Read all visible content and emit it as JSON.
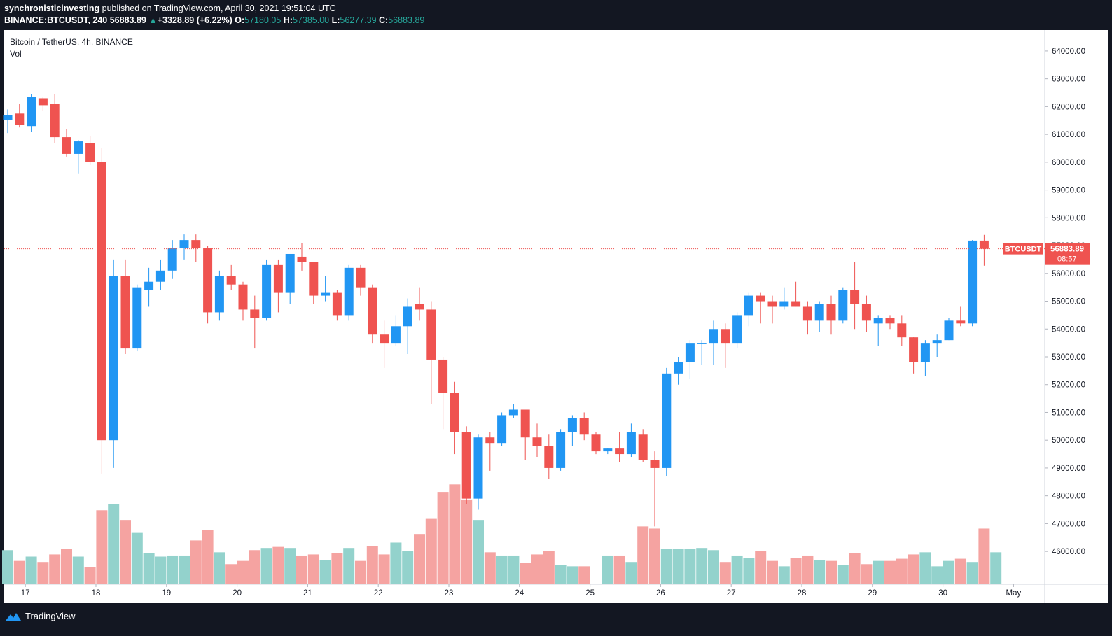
{
  "header": {
    "author": "synchronisticinvesting",
    "published_text": " published on TradingView.com, April 30, 2021 19:51:04 UTC",
    "symbol": "BINANCE:BTCUSDT, 240",
    "last_price": "56883.89",
    "change": "+3328.89 (+6.22%)",
    "o_label": "O:",
    "o_value": "57180.05",
    "h_label": "H:",
    "h_value": "57385.00",
    "l_label": "L:",
    "l_value": "56277.39",
    "c_label": "C:",
    "c_value": "56883.89"
  },
  "legend": {
    "title": "Bitcoin / TetherUS, 4h, BINANCE",
    "volume_label": "Vol"
  },
  "price_tag": {
    "symbol": "BTCUSDT",
    "price": "56883.89",
    "countdown": "08:57"
  },
  "footer": {
    "brand": "TradingView"
  },
  "colors": {
    "up": "#2196f3",
    "down": "#ef5350",
    "vol_up": "#93d2cc",
    "vol_down": "#f5a3a1",
    "tag_bg": "#ef5350",
    "background": "#ffffff",
    "frame": "#131722"
  },
  "chart_data": {
    "type": "candlestick",
    "interval": "4h",
    "y_axis": {
      "min": 45500,
      "max": 64300,
      "ticks": [
        "64000.00",
        "63000.00",
        "62000.00",
        "61000.00",
        "60000.00",
        "59000.00",
        "58000.00",
        "57000.00",
        "56000.00",
        "55000.00",
        "54000.00",
        "53000.00",
        "52000.00",
        "51000.00",
        "50000.00",
        "49000.00",
        "48000.00",
        "47000.00",
        "46000.00"
      ],
      "tick_values": [
        64000,
        63000,
        62000,
        61000,
        60000,
        59000,
        58000,
        57000,
        56000,
        55000,
        54000,
        53000,
        52000,
        51000,
        50000,
        49000,
        48000,
        47000,
        46000
      ]
    },
    "x_axis": {
      "labels": [
        "17",
        "18",
        "19",
        "20",
        "21",
        "22",
        "23",
        "24",
        "25",
        "26",
        "27",
        "28",
        "29",
        "30",
        "May"
      ],
      "label_bar_index": [
        1.5,
        7.5,
        13.5,
        19.5,
        25.5,
        31.5,
        37.5,
        43.5,
        49.5,
        55.5,
        61.5,
        67.5,
        73.5,
        79.5,
        85.5
      ]
    },
    "last_price_line": 56883.89,
    "volume_scale_max": 100,
    "candles": [
      {
        "o": 61520,
        "h": 61900,
        "l": 61050,
        "c": 61700
      },
      {
        "o": 61750,
        "h": 62100,
        "l": 61250,
        "c": 61350
      },
      {
        "o": 61300,
        "h": 62450,
        "l": 61100,
        "c": 62350
      },
      {
        "o": 62300,
        "h": 62350,
        "l": 61850,
        "c": 62050
      },
      {
        "o": 62100,
        "h": 62450,
        "l": 60700,
        "c": 60900
      },
      {
        "o": 60900,
        "h": 61200,
        "l": 60200,
        "c": 60300
      },
      {
        "o": 60300,
        "h": 60800,
        "l": 59600,
        "c": 60750
      },
      {
        "o": 60700,
        "h": 60950,
        "l": 59900,
        "c": 60000
      },
      {
        "o": 60000,
        "h": 60500,
        "l": 48800,
        "c": 50000
      },
      {
        "o": 50000,
        "h": 56500,
        "l": 49000,
        "c": 55900
      },
      {
        "o": 55900,
        "h": 56500,
        "l": 53100,
        "c": 53300
      },
      {
        "o": 53300,
        "h": 55600,
        "l": 53200,
        "c": 55500
      },
      {
        "o": 55400,
        "h": 56200,
        "l": 54800,
        "c": 55700
      },
      {
        "o": 55700,
        "h": 56500,
        "l": 55400,
        "c": 56100
      },
      {
        "o": 56100,
        "h": 57200,
        "l": 55800,
        "c": 56900
      },
      {
        "o": 56900,
        "h": 57400,
        "l": 56500,
        "c": 57200
      },
      {
        "o": 57200,
        "h": 57400,
        "l": 56400,
        "c": 56900
      },
      {
        "o": 56900,
        "h": 57000,
        "l": 54200,
        "c": 54600
      },
      {
        "o": 54600,
        "h": 56100,
        "l": 54300,
        "c": 55900
      },
      {
        "o": 55900,
        "h": 56300,
        "l": 55400,
        "c": 55600
      },
      {
        "o": 55600,
        "h": 55700,
        "l": 54300,
        "c": 54700
      },
      {
        "o": 54700,
        "h": 55200,
        "l": 53300,
        "c": 54400
      },
      {
        "o": 54400,
        "h": 56500,
        "l": 54300,
        "c": 56300
      },
      {
        "o": 56300,
        "h": 56500,
        "l": 54600,
        "c": 55300
      },
      {
        "o": 55300,
        "h": 56700,
        "l": 54900,
        "c": 56700
      },
      {
        "o": 56600,
        "h": 57100,
        "l": 56100,
        "c": 56400
      },
      {
        "o": 56400,
        "h": 56400,
        "l": 54900,
        "c": 55200
      },
      {
        "o": 55200,
        "h": 55900,
        "l": 55000,
        "c": 55300
      },
      {
        "o": 55300,
        "h": 55400,
        "l": 54300,
        "c": 54500
      },
      {
        "o": 54500,
        "h": 56300,
        "l": 54300,
        "c": 56200
      },
      {
        "o": 56200,
        "h": 56300,
        "l": 55200,
        "c": 55500
      },
      {
        "o": 55500,
        "h": 55600,
        "l": 53500,
        "c": 53800
      },
      {
        "o": 53800,
        "h": 54300,
        "l": 52600,
        "c": 53500
      },
      {
        "o": 53500,
        "h": 54500,
        "l": 53400,
        "c": 54100
      },
      {
        "o": 54100,
        "h": 55100,
        "l": 53100,
        "c": 54800
      },
      {
        "o": 54900,
        "h": 55500,
        "l": 54300,
        "c": 54700
      },
      {
        "o": 54700,
        "h": 55000,
        "l": 51300,
        "c": 52900
      },
      {
        "o": 52900,
        "h": 53000,
        "l": 50400,
        "c": 51700
      },
      {
        "o": 51700,
        "h": 52100,
        "l": 49500,
        "c": 50300
      },
      {
        "o": 50300,
        "h": 50500,
        "l": 47700,
        "c": 47900
      },
      {
        "o": 47900,
        "h": 50200,
        "l": 47500,
        "c": 50100
      },
      {
        "o": 50100,
        "h": 50300,
        "l": 48900,
        "c": 49900
      },
      {
        "o": 49900,
        "h": 51000,
        "l": 49800,
        "c": 50900
      },
      {
        "o": 50900,
        "h": 51300,
        "l": 50800,
        "c": 51100
      },
      {
        "o": 51100,
        "h": 51100,
        "l": 49300,
        "c": 50100
      },
      {
        "o": 50100,
        "h": 50600,
        "l": 49400,
        "c": 49800
      },
      {
        "o": 49800,
        "h": 50200,
        "l": 48600,
        "c": 49000
      },
      {
        "o": 49000,
        "h": 50400,
        "l": 48900,
        "c": 50300
      },
      {
        "o": 50300,
        "h": 50900,
        "l": 49800,
        "c": 50800
      },
      {
        "o": 50800,
        "h": 51000,
        "l": 50000,
        "c": 50200
      },
      {
        "o": 50200,
        "h": 50300,
        "l": 49500,
        "c": 49600
      },
      {
        "o": 49600,
        "h": 49700,
        "l": 49500,
        "c": 49700
      },
      {
        "o": 49700,
        "h": 50300,
        "l": 49200,
        "c": 49500
      },
      {
        "o": 49500,
        "h": 50600,
        "l": 49400,
        "c": 50300
      },
      {
        "o": 50200,
        "h": 50400,
        "l": 49200,
        "c": 49300
      },
      {
        "o": 49300,
        "h": 49600,
        "l": 46900,
        "c": 49000
      },
      {
        "o": 49000,
        "h": 52600,
        "l": 48700,
        "c": 52400
      },
      {
        "o": 52400,
        "h": 53000,
        "l": 52000,
        "c": 52800
      },
      {
        "o": 52800,
        "h": 53600,
        "l": 52200,
        "c": 53500
      },
      {
        "o": 53500,
        "h": 53600,
        "l": 52700,
        "c": 53500
      },
      {
        "o": 53500,
        "h": 54300,
        "l": 52700,
        "c": 54000
      },
      {
        "o": 54000,
        "h": 54200,
        "l": 52600,
        "c": 53500
      },
      {
        "o": 53500,
        "h": 54600,
        "l": 53300,
        "c": 54500
      },
      {
        "o": 54500,
        "h": 55300,
        "l": 54100,
        "c": 55200
      },
      {
        "o": 55200,
        "h": 55300,
        "l": 54200,
        "c": 55000
      },
      {
        "o": 55000,
        "h": 55200,
        "l": 54200,
        "c": 54800
      },
      {
        "o": 54800,
        "h": 55500,
        "l": 54700,
        "c": 55000
      },
      {
        "o": 55000,
        "h": 55700,
        "l": 54800,
        "c": 54800
      },
      {
        "o": 54800,
        "h": 55000,
        "l": 53800,
        "c": 54300
      },
      {
        "o": 54300,
        "h": 55000,
        "l": 53900,
        "c": 54900
      },
      {
        "o": 54900,
        "h": 55200,
        "l": 53800,
        "c": 54300
      },
      {
        "o": 54300,
        "h": 55500,
        "l": 54200,
        "c": 55400
      },
      {
        "o": 55400,
        "h": 56400,
        "l": 54000,
        "c": 54900
      },
      {
        "o": 54900,
        "h": 55200,
        "l": 53900,
        "c": 54300
      },
      {
        "o": 54200,
        "h": 54500,
        "l": 53400,
        "c": 54400
      },
      {
        "o": 54400,
        "h": 54500,
        "l": 54000,
        "c": 54200
      },
      {
        "o": 54200,
        "h": 54500,
        "l": 53400,
        "c": 53700
      },
      {
        "o": 53700,
        "h": 53700,
        "l": 52400,
        "c": 52800
      },
      {
        "o": 52800,
        "h": 53600,
        "l": 52300,
        "c": 53500
      },
      {
        "o": 53500,
        "h": 53800,
        "l": 53000,
        "c": 53600
      },
      {
        "o": 53600,
        "h": 54400,
        "l": 53600,
        "c": 54300
      },
      {
        "o": 54300,
        "h": 54800,
        "l": 54100,
        "c": 54200
      },
      {
        "o": 54200,
        "h": 57200,
        "l": 54100,
        "c": 57180
      },
      {
        "o": 57180,
        "h": 57385,
        "l": 56277,
        "c": 56884
      }
    ],
    "volume": [
      31,
      21,
      25,
      20,
      27,
      32,
      25,
      15,
      68,
      74,
      59,
      47,
      28,
      25,
      26,
      26,
      40,
      50,
      29,
      18,
      21,
      31,
      33,
      34,
      33,
      26,
      27,
      22,
      28,
      33,
      21,
      35,
      27,
      38,
      30,
      46,
      60,
      85,
      92,
      78,
      59,
      29,
      26,
      26,
      19,
      27,
      30,
      17,
      16,
      16,
      0,
      26,
      26,
      20,
      53,
      51,
      32,
      32,
      32,
      33,
      31,
      20,
      26,
      24,
      30,
      21,
      16,
      24,
      26,
      22,
      21,
      17,
      28,
      18,
      21,
      21,
      23,
      27,
      29,
      16,
      21,
      23,
      20,
      51,
      29
    ]
  }
}
